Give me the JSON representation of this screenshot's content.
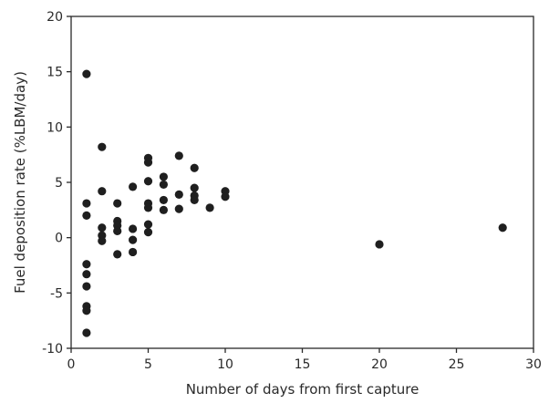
{
  "chart_data": {
    "type": "scatter",
    "title": "",
    "xlabel": "Number of days from first capture",
    "ylabel": "Fuel deposition rate (%LBM/day)",
    "xlim": [
      0,
      30
    ],
    "ylim": [
      -10,
      20
    ],
    "x_ticks": [
      0,
      5,
      10,
      15,
      20,
      25,
      30
    ],
    "y_ticks": [
      -10,
      -5,
      0,
      5,
      10,
      15,
      20
    ],
    "x_tick_labels": [
      "0",
      "5",
      "10",
      "15",
      "20",
      "25",
      "30"
    ],
    "y_tick_labels": [
      "-10",
      "-5",
      "0",
      "5",
      "10",
      "15",
      "20"
    ],
    "grid": false,
    "legend": "none",
    "marker_color": "#1f1f1f",
    "series": [
      {
        "points": [
          {
            "x": 1,
            "y": 14.8
          },
          {
            "x": 1,
            "y": 3.1
          },
          {
            "x": 1,
            "y": 2.0
          },
          {
            "x": 1,
            "y": -2.4
          },
          {
            "x": 1,
            "y": -3.3
          },
          {
            "x": 1,
            "y": -4.4
          },
          {
            "x": 1,
            "y": -6.2
          },
          {
            "x": 1,
            "y": -6.6
          },
          {
            "x": 1,
            "y": -8.6
          },
          {
            "x": 2,
            "y": 8.2
          },
          {
            "x": 2,
            "y": 4.2
          },
          {
            "x": 2,
            "y": 0.9
          },
          {
            "x": 2,
            "y": 0.2
          },
          {
            "x": 2,
            "y": -0.3
          },
          {
            "x": 3,
            "y": 3.1
          },
          {
            "x": 3,
            "y": 1.5
          },
          {
            "x": 3,
            "y": 1.1
          },
          {
            "x": 3,
            "y": 0.6
          },
          {
            "x": 3,
            "y": -1.5
          },
          {
            "x": 4,
            "y": 4.6
          },
          {
            "x": 4,
            "y": 0.8
          },
          {
            "x": 4,
            "y": -0.2
          },
          {
            "x": 4,
            "y": -1.3
          },
          {
            "x": 5,
            "y": 7.2
          },
          {
            "x": 5,
            "y": 6.8
          },
          {
            "x": 5,
            "y": 5.1
          },
          {
            "x": 5,
            "y": 3.1
          },
          {
            "x": 5,
            "y": 2.7
          },
          {
            "x": 5,
            "y": 1.2
          },
          {
            "x": 5,
            "y": 0.5
          },
          {
            "x": 6,
            "y": 5.5
          },
          {
            "x": 6,
            "y": 4.8
          },
          {
            "x": 6,
            "y": 3.4
          },
          {
            "x": 6,
            "y": 2.5
          },
          {
            "x": 7,
            "y": 7.4
          },
          {
            "x": 7,
            "y": 3.9
          },
          {
            "x": 7,
            "y": 2.6
          },
          {
            "x": 8,
            "y": 6.3
          },
          {
            "x": 8,
            "y": 4.5
          },
          {
            "x": 8,
            "y": 3.8
          },
          {
            "x": 8,
            "y": 3.4
          },
          {
            "x": 9,
            "y": 2.7
          },
          {
            "x": 10,
            "y": 4.2
          },
          {
            "x": 10,
            "y": 3.7
          },
          {
            "x": 20,
            "y": -0.6
          },
          {
            "x": 28,
            "y": 0.9
          }
        ]
      }
    ]
  }
}
